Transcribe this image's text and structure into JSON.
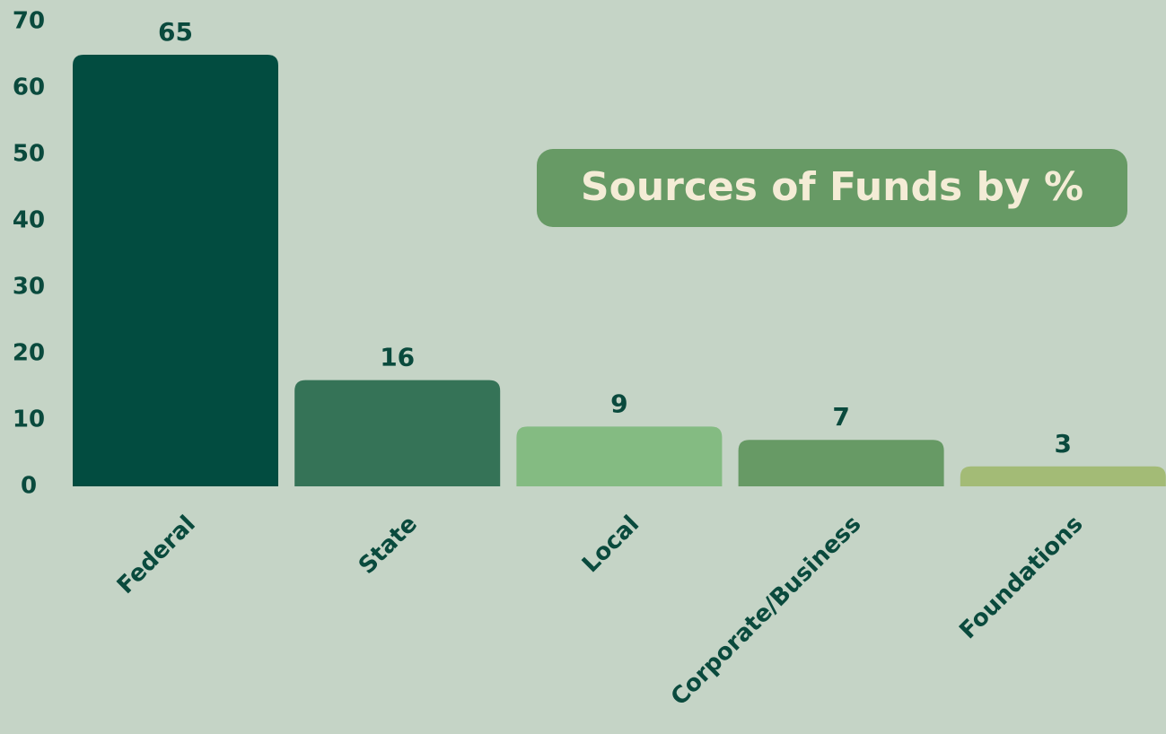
{
  "chart_data": {
    "type": "bar",
    "title": "Sources of Funds by %",
    "categories": [
      "Federal",
      "State",
      "Local",
      "Corporate/Business",
      "Foundations"
    ],
    "values": [
      65,
      16,
      9,
      7,
      3
    ],
    "colors": [
      "#024c40",
      "#357357",
      "#84bb82",
      "#679a65",
      "#a3bb76"
    ],
    "ylim": [
      0,
      70
    ],
    "yticks": [
      0,
      10,
      20,
      30,
      40,
      50,
      60,
      70
    ],
    "grid": false
  }
}
